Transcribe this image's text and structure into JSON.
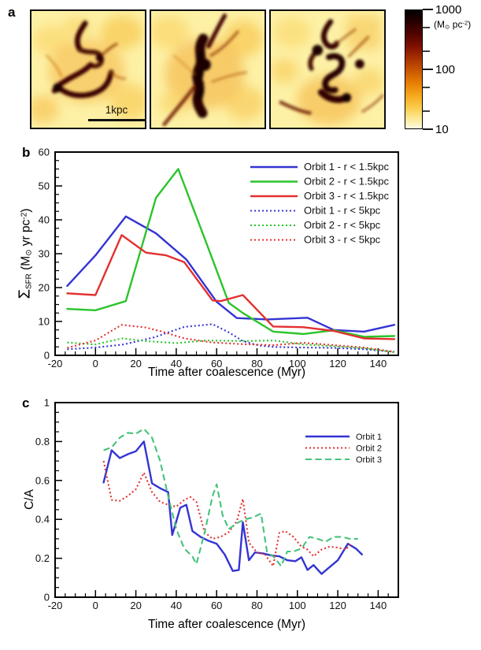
{
  "figure": {
    "panel_a_label": "a",
    "panel_b_label": "b",
    "panel_c_label": "c"
  },
  "panel_a": {
    "scalebar_label": "1kpc",
    "colorbar": {
      "tick_labels": [
        "1000",
        "100",
        "10"
      ],
      "unit": {
        "open": "(M",
        "sun": "⊙",
        "mid": " pc",
        "exp": "-2",
        "close": ")"
      }
    }
  },
  "chart_data": [
    {
      "id": "b",
      "type": "line",
      "xlabel": "Time after coalescence (Myr)",
      "ylabel": {
        "sigma": "Σ",
        "sigma_sub": "SFR",
        "open": " (M",
        "sun": "⊙",
        "mid": " yr pc",
        "exp": "-2",
        "close": ")"
      },
      "xlim": [
        -20,
        150
      ],
      "ylim": [
        0,
        60
      ],
      "xticks": [
        -20,
        0,
        20,
        40,
        60,
        80,
        100,
        120,
        140
      ],
      "yticks": [
        0,
        10,
        20,
        30,
        40,
        50,
        60
      ],
      "x_minor_step": 5,
      "y_minor_step": 2.5,
      "grid": false,
      "legend_position": "top-right",
      "series": [
        {
          "name": "Orbit 1 - r < 1.5kpc",
          "color": "#3434d3",
          "style": "solid",
          "x": [
            -14,
            0,
            15,
            30,
            45,
            60,
            70,
            85,
            105,
            118,
            133,
            148
          ],
          "y": [
            20.5,
            29.5,
            41,
            36,
            28.3,
            15.8,
            11,
            10.6,
            11.1,
            7.5,
            7,
            9
          ]
        },
        {
          "name": "Orbit 2 - r < 1.5kpc",
          "color": "#2bc42b",
          "style": "solid",
          "x": [
            -14,
            0,
            15,
            30,
            41,
            55,
            66,
            73,
            88,
            103,
            118,
            133,
            148
          ],
          "y": [
            13.7,
            13.3,
            16,
            46.5,
            55,
            33,
            15.5,
            12.5,
            7,
            6.3,
            7.4,
            5.5,
            5.7
          ]
        },
        {
          "name": "Orbit 3 - r < 1.5kpc",
          "color": "#e33030",
          "style": "solid",
          "x": [
            -14,
            0,
            13,
            25,
            35,
            44,
            58,
            62,
            73,
            88,
            103,
            118,
            133,
            148
          ],
          "y": [
            18.3,
            17.8,
            35.5,
            30.3,
            29.5,
            27.5,
            16.2,
            16,
            17.8,
            8.5,
            8.3,
            7.2,
            5,
            4.8
          ]
        },
        {
          "name": "Orbit 1 - r < 5kpc",
          "color": "#3434d3",
          "style": "dotted",
          "x": [
            -14,
            0,
            14,
            29,
            44,
            51,
            58,
            66,
            73,
            81,
            88,
            103,
            118,
            133,
            148
          ],
          "y": [
            1.8,
            2.3,
            3.2,
            5.3,
            8.4,
            8.8,
            9.2,
            6.8,
            4.2,
            2.9,
            2.5,
            2.3,
            2.2,
            1.8,
            1.1
          ]
        },
        {
          "name": "Orbit 2 - r < 5kpc",
          "color": "#2bc42b",
          "style": "dotted",
          "x": [
            -14,
            0,
            13,
            25,
            40,
            55,
            73,
            88,
            103,
            118,
            133,
            148
          ],
          "y": [
            3.8,
            3.2,
            5.0,
            4.2,
            3.6,
            4.4,
            4.2,
            4.4,
            3.2,
            2.7,
            2.1,
            0.9
          ]
        },
        {
          "name": "Orbit 3 - r < 5kpc",
          "color": "#e33030",
          "style": "dotted",
          "x": [
            -14,
            0,
            13,
            25,
            33,
            44,
            58,
            73,
            88,
            103,
            118,
            133,
            148
          ],
          "y": [
            2.2,
            4.4,
            9.0,
            8.2,
            7.0,
            5.0,
            3.8,
            3.3,
            3.0,
            3.7,
            3.0,
            2.3,
            1.0
          ]
        }
      ]
    },
    {
      "id": "c",
      "type": "line",
      "xlabel": "Time after coalescence (Myr)",
      "ylabel": "C/A",
      "xlim": [
        -20,
        150
      ],
      "ylim": [
        0,
        1
      ],
      "xticks": [
        -20,
        0,
        20,
        40,
        60,
        80,
        100,
        120,
        140
      ],
      "yticks": [
        0,
        0.2,
        0.4,
        0.6,
        0.8,
        1
      ],
      "x_minor_step": 5,
      "y_minor_step": 0.05,
      "grid": false,
      "legend_position": "top-right",
      "series": [
        {
          "name": "Orbit 1",
          "color": "#3434d3",
          "style": "solid",
          "x": [
            4,
            8,
            12,
            16,
            20,
            24,
            28,
            32,
            36,
            38,
            42,
            45,
            48,
            52,
            56,
            60,
            64,
            68,
            71,
            73,
            76,
            79,
            83,
            87,
            91,
            95,
            99,
            102,
            105,
            108,
            112,
            116,
            120,
            125,
            129,
            132
          ],
          "y": [
            0.59,
            0.755,
            0.715,
            0.735,
            0.75,
            0.8,
            0.585,
            0.56,
            0.54,
            0.32,
            0.46,
            0.475,
            0.34,
            0.31,
            0.29,
            0.275,
            0.22,
            0.135,
            0.14,
            0.385,
            0.19,
            0.23,
            0.225,
            0.215,
            0.21,
            0.19,
            0.185,
            0.205,
            0.14,
            0.165,
            0.12,
            0.155,
            0.19,
            0.275,
            0.25,
            0.22
          ]
        },
        {
          "name": "Orbit 2",
          "color": "#e33030",
          "style": "dotted",
          "x": [
            4,
            8,
            12,
            16,
            20,
            24,
            28,
            32,
            36,
            40,
            44,
            47,
            50,
            54,
            58,
            62,
            66,
            70,
            73,
            76,
            80,
            84,
            88,
            91,
            94,
            98,
            102,
            105,
            108,
            112,
            116,
            120,
            124,
            127
          ],
          "y": [
            0.7,
            0.5,
            0.495,
            0.52,
            0.555,
            0.64,
            0.54,
            0.49,
            0.475,
            0.465,
            0.5,
            0.515,
            0.49,
            0.335,
            0.3,
            0.31,
            0.335,
            0.39,
            0.505,
            0.28,
            0.23,
            0.22,
            0.16,
            0.33,
            0.34,
            0.31,
            0.26,
            0.245,
            0.21,
            0.245,
            0.26,
            0.255,
            0.245,
            0.28
          ]
        },
        {
          "name": "Orbit 3",
          "color": "#45c37c",
          "style": "dashed",
          "x": [
            4,
            8,
            12,
            16,
            20,
            24,
            28,
            32,
            36,
            40,
            44,
            48,
            50,
            54,
            58,
            60,
            63,
            66,
            70,
            74,
            78,
            82,
            85,
            88,
            92,
            95,
            98,
            102,
            106,
            110,
            114,
            118,
            122,
            126,
            130
          ],
          "y": [
            0.755,
            0.77,
            0.82,
            0.845,
            0.84,
            0.865,
            0.82,
            0.7,
            0.52,
            0.35,
            0.25,
            0.21,
            0.17,
            0.33,
            0.52,
            0.58,
            0.42,
            0.35,
            0.38,
            0.4,
            0.41,
            0.43,
            0.23,
            0.21,
            0.16,
            0.235,
            0.235,
            0.25,
            0.31,
            0.3,
            0.285,
            0.31,
            0.31,
            0.3,
            0.3
          ]
        }
      ]
    }
  ]
}
